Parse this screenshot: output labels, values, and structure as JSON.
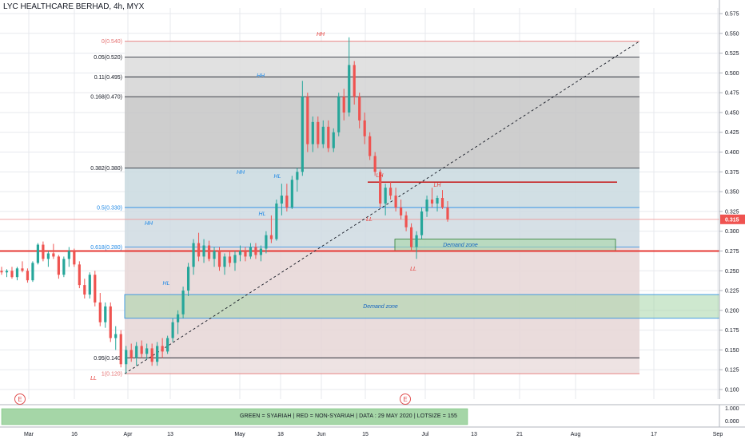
{
  "symbol_title": "LYC HEALTHCARE BERHAD, 4h, MYX",
  "footer_text": "GREEN = SYARIAH  |  RED = NON-SYARIAH  |  DATA : 29 MAY 2020  |  LOTSIZE = 155",
  "earnings_marker": "E",
  "colors": {
    "bull": "#26a69a",
    "bear": "#ef5350",
    "grid": "#e7e9ee",
    "support_line": "#e53935",
    "demand_fill": "#a5d6a7",
    "demand_border": "#1e88e5",
    "annot_red": "#e53935",
    "annot_blue": "#1e88e5"
  },
  "chart_data": {
    "type": "candlestick",
    "title": "LYC HEALTHCARE BERHAD, 4h, MYX",
    "price_axis": {
      "range": [
        0.085,
        0.58
      ],
      "ticks": [
        "0.575",
        "0.550",
        "0.525",
        "0.500",
        "0.475",
        "0.450",
        "0.425",
        "0.400",
        "0.375",
        "0.350",
        "0.325",
        "0.300",
        "0.275",
        "0.250",
        "0.225",
        "0.200",
        "0.175",
        "0.150",
        "0.125",
        "0.100"
      ],
      "last_price": "0.315"
    },
    "time_axis": {
      "ticks": [
        "Mar",
        "16",
        "Apr",
        "13",
        "May",
        "18",
        "Jun",
        "15",
        "Jul",
        "13",
        "21",
        "Aug",
        "17",
        "Sep"
      ]
    },
    "volume_axis": {
      "label": "1.000",
      "value": "0.000"
    },
    "fibonacci": [
      {
        "label": "0(0.540)",
        "price": 0.54,
        "color": "#e57373"
      },
      {
        "label": "0.05(0.520)",
        "price": 0.52,
        "color": "#131722"
      },
      {
        "label": "0.11(0.495)",
        "price": 0.495,
        "color": "#131722"
      },
      {
        "label": "0.168(0.470)",
        "price": 0.47,
        "color": "#131722"
      },
      {
        "label": "0.382(0.380)",
        "price": 0.38,
        "color": "#131722"
      },
      {
        "label": "0.5(0.330)",
        "price": 0.33,
        "color": "#1e88e5"
      },
      {
        "label": "0.618(0.280)",
        "price": 0.28,
        "color": "#1e88e5"
      },
      {
        "label": "0.95(0.140)",
        "price": 0.14,
        "color": "#131722"
      },
      {
        "label": "1(0.120)",
        "price": 0.12,
        "color": "#e57373"
      }
    ],
    "horizontal_levels": [
      {
        "price": 0.275,
        "label": "support"
      },
      {
        "price": 0.315,
        "label": "last"
      }
    ],
    "resistance_segment": {
      "price": 0.362
    },
    "demand_zones": [
      {
        "label": "Demand zone",
        "top": 0.22,
        "bottom": 0.19
      },
      {
        "label": "Demand zone",
        "top": 0.29,
        "bottom": 0.275
      }
    ],
    "annotations": [
      {
        "text": "HH",
        "color": "red",
        "price": 0.545
      },
      {
        "text": "HH",
        "color": "blue",
        "price": 0.49
      },
      {
        "text": "HH",
        "color": "blue",
        "price": 0.375
      },
      {
        "text": "HL",
        "color": "blue",
        "price": 0.367
      },
      {
        "text": "HL",
        "color": "blue",
        "price": 0.318
      },
      {
        "text": "HH",
        "color": "blue",
        "price": 0.303
      },
      {
        "text": "HL",
        "color": "blue",
        "price": 0.231
      },
      {
        "text": "LL",
        "color": "red",
        "price": 0.106
      },
      {
        "text": "LH",
        "color": "red",
        "price": 0.365
      },
      {
        "text": "LL",
        "color": "red",
        "price": 0.31
      },
      {
        "text": "LH",
        "color": "red",
        "price": 0.353
      },
      {
        "text": "LL",
        "color": "red",
        "price": 0.247
      }
    ],
    "candles": [
      [
        0.25,
        0.255,
        0.245,
        0.248
      ],
      [
        0.248,
        0.252,
        0.242,
        0.25
      ],
      [
        0.25,
        0.255,
        0.24,
        0.242
      ],
      [
        0.242,
        0.255,
        0.238,
        0.253
      ],
      [
        0.253,
        0.262,
        0.248,
        0.25
      ],
      [
        0.25,
        0.253,
        0.235,
        0.238
      ],
      [
        0.238,
        0.262,
        0.236,
        0.26
      ],
      [
        0.26,
        0.285,
        0.258,
        0.283
      ],
      [
        0.283,
        0.287,
        0.262,
        0.265
      ],
      [
        0.265,
        0.275,
        0.255,
        0.272
      ],
      [
        0.272,
        0.284,
        0.265,
        0.268
      ],
      [
        0.268,
        0.27,
        0.24,
        0.245
      ],
      [
        0.245,
        0.268,
        0.242,
        0.265
      ],
      [
        0.265,
        0.28,
        0.255,
        0.275
      ],
      [
        0.275,
        0.278,
        0.255,
        0.258
      ],
      [
        0.258,
        0.262,
        0.228,
        0.232
      ],
      [
        0.232,
        0.24,
        0.215,
        0.22
      ],
      [
        0.22,
        0.248,
        0.215,
        0.245
      ],
      [
        0.245,
        0.25,
        0.205,
        0.21
      ],
      [
        0.21,
        0.222,
        0.18,
        0.185
      ],
      [
        0.185,
        0.21,
        0.178,
        0.205
      ],
      [
        0.205,
        0.21,
        0.16,
        0.165
      ],
      [
        0.165,
        0.18,
        0.15,
        0.17
      ],
      [
        0.17,
        0.175,
        0.128,
        0.132
      ],
      [
        0.132,
        0.155,
        0.12,
        0.15
      ],
      [
        0.15,
        0.158,
        0.135,
        0.14
      ],
      [
        0.14,
        0.16,
        0.13,
        0.155
      ],
      [
        0.155,
        0.162,
        0.14,
        0.145
      ],
      [
        0.145,
        0.158,
        0.138,
        0.152
      ],
      [
        0.152,
        0.158,
        0.13,
        0.135
      ],
      [
        0.135,
        0.16,
        0.13,
        0.155
      ],
      [
        0.155,
        0.165,
        0.14,
        0.148
      ],
      [
        0.148,
        0.168,
        0.145,
        0.165
      ],
      [
        0.165,
        0.19,
        0.16,
        0.185
      ],
      [
        0.185,
        0.2,
        0.17,
        0.195
      ],
      [
        0.195,
        0.23,
        0.19,
        0.225
      ],
      [
        0.225,
        0.26,
        0.218,
        0.255
      ],
      [
        0.255,
        0.29,
        0.245,
        0.285
      ],
      [
        0.285,
        0.298,
        0.262,
        0.268
      ],
      [
        0.268,
        0.29,
        0.26,
        0.282
      ],
      [
        0.282,
        0.288,
        0.262,
        0.265
      ],
      [
        0.265,
        0.28,
        0.255,
        0.275
      ],
      [
        0.275,
        0.28,
        0.25,
        0.255
      ],
      [
        0.255,
        0.272,
        0.245,
        0.268
      ],
      [
        0.268,
        0.275,
        0.255,
        0.26
      ],
      [
        0.26,
        0.275,
        0.25,
        0.27
      ],
      [
        0.27,
        0.282,
        0.262,
        0.275
      ],
      [
        0.275,
        0.28,
        0.262,
        0.268
      ],
      [
        0.268,
        0.285,
        0.265,
        0.28
      ],
      [
        0.28,
        0.285,
        0.265,
        0.27
      ],
      [
        0.27,
        0.282,
        0.262,
        0.278
      ],
      [
        0.278,
        0.3,
        0.272,
        0.295
      ],
      [
        0.295,
        0.32,
        0.285,
        0.29
      ],
      [
        0.29,
        0.34,
        0.288,
        0.335
      ],
      [
        0.335,
        0.36,
        0.32,
        0.345
      ],
      [
        0.345,
        0.36,
        0.325,
        0.33
      ],
      [
        0.33,
        0.37,
        0.328,
        0.365
      ],
      [
        0.365,
        0.38,
        0.35,
        0.375
      ],
      [
        0.375,
        0.49,
        0.37,
        0.47
      ],
      [
        0.47,
        0.475,
        0.4,
        0.41
      ],
      [
        0.41,
        0.445,
        0.4,
        0.438
      ],
      [
        0.438,
        0.445,
        0.405,
        0.41
      ],
      [
        0.41,
        0.44,
        0.405,
        0.432
      ],
      [
        0.432,
        0.44,
        0.4,
        0.405
      ],
      [
        0.405,
        0.43,
        0.4,
        0.425
      ],
      [
        0.425,
        0.475,
        0.42,
        0.47
      ],
      [
        0.47,
        0.48,
        0.44,
        0.45
      ],
      [
        0.45,
        0.545,
        0.445,
        0.51
      ],
      [
        0.51,
        0.515,
        0.46,
        0.47
      ],
      [
        0.47,
        0.475,
        0.43,
        0.44
      ],
      [
        0.44,
        0.45,
        0.41,
        0.42
      ],
      [
        0.42,
        0.425,
        0.39,
        0.395
      ],
      [
        0.395,
        0.4,
        0.37,
        0.375
      ],
      [
        0.375,
        0.378,
        0.33,
        0.335
      ],
      [
        0.335,
        0.36,
        0.32,
        0.355
      ],
      [
        0.355,
        0.362,
        0.34,
        0.345
      ],
      [
        0.345,
        0.355,
        0.325,
        0.33
      ],
      [
        0.33,
        0.34,
        0.315,
        0.32
      ],
      [
        0.32,
        0.325,
        0.3,
        0.305
      ],
      [
        0.305,
        0.31,
        0.275,
        0.28
      ],
      [
        0.28,
        0.3,
        0.265,
        0.295
      ],
      [
        0.295,
        0.33,
        0.29,
        0.325
      ],
      [
        0.325,
        0.345,
        0.318,
        0.34
      ],
      [
        0.34,
        0.355,
        0.33,
        0.335
      ],
      [
        0.335,
        0.345,
        0.325,
        0.342
      ],
      [
        0.342,
        0.352,
        0.328,
        0.33
      ],
      [
        0.33,
        0.338,
        0.312,
        0.315
      ]
    ]
  }
}
